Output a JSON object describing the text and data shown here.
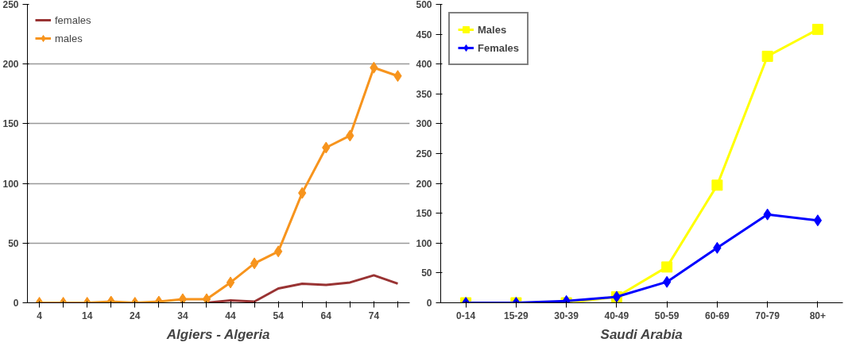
{
  "chart_data": [
    {
      "type": "line",
      "title": "Algiers - Algeria",
      "categories": [
        "4",
        null,
        "14",
        null,
        "24",
        null,
        "34",
        null,
        "44",
        null,
        "54",
        null,
        "64",
        null,
        "74",
        null
      ],
      "ylim": [
        0,
        250
      ],
      "yticks": [
        0,
        50,
        100,
        150,
        200,
        250
      ],
      "grid": "y",
      "legend": "top left",
      "series": [
        {
          "name": "males",
          "color": "#f7941d",
          "marker": "diamond",
          "values": [
            0,
            0,
            0,
            1,
            0,
            1,
            3,
            3,
            17,
            33,
            43,
            92,
            130,
            140,
            197,
            190
          ]
        },
        {
          "name": "females",
          "color": "#993333",
          "marker": "none",
          "values": [
            null,
            null,
            null,
            null,
            null,
            null,
            null,
            0,
            2,
            1,
            12,
            16,
            15,
            17,
            23,
            16
          ]
        }
      ]
    },
    {
      "type": "line",
      "title": "Saudi Arabia",
      "categories": [
        "0-14",
        "15-29",
        "30-39",
        "40-49",
        "50-59",
        "60-69",
        "70-79",
        "80+"
      ],
      "ylim": [
        0,
        500
      ],
      "yticks": [
        0,
        50,
        100,
        150,
        200,
        250,
        300,
        350,
        400,
        450,
        500
      ],
      "grid": false,
      "legend": "top left",
      "series": [
        {
          "name": "Females",
          "color": "#0000ff",
          "marker": "diamond",
          "values": [
            0,
            0,
            3,
            10,
            35,
            92,
            148,
            138
          ]
        },
        {
          "name": "Males",
          "color": "#ffff00",
          "marker": "square",
          "values": [
            0,
            0,
            0,
            10,
            60,
            197,
            413,
            458
          ]
        }
      ]
    }
  ]
}
